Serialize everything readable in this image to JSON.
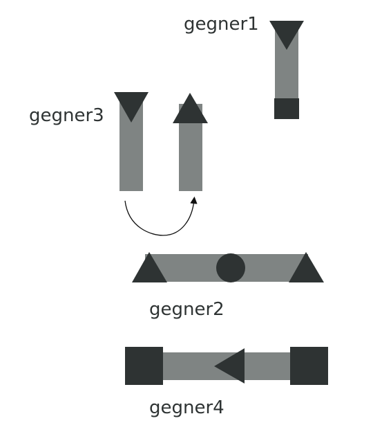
{
  "labels": {
    "gegner1": "gegner1",
    "gegner2": "gegner2",
    "gegner3": "gegner3",
    "gegner4": "gegner4"
  },
  "colors": {
    "background": "#ffffff",
    "bar": "#7f8483",
    "dark": "#2e3333",
    "arrow": "#111111"
  }
}
